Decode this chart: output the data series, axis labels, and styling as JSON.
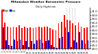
{
  "title": "Milwaukee Weather Barometric Pressure",
  "subtitle": "Daily High/Low",
  "high_color": "#ff0000",
  "low_color": "#0000cc",
  "background_color": "#ffffff",
  "ylim": [
    29.0,
    31.2
  ],
  "y_ticks": [
    29.0,
    29.2,
    29.4,
    29.6,
    29.8,
    30.0,
    30.2,
    30.4,
    30.6,
    30.8,
    31.0
  ],
  "y_tick_labels": [
    "29.0",
    "29.2",
    "29.4",
    "29.6",
    "29.8",
    "30.0",
    "30.2",
    "30.4",
    "30.6",
    "30.8",
    "31.0"
  ],
  "highs": [
    31.1,
    30.4,
    30.2,
    30.15,
    30.2,
    30.15,
    30.25,
    30.1,
    30.2,
    30.1,
    30.15,
    30.1,
    30.15,
    30.2,
    30.15,
    30.2,
    30.2,
    30.1,
    30.05,
    30.0,
    30.35,
    30.45,
    30.8,
    30.55,
    30.5,
    30.35,
    30.25,
    30.4,
    30.2,
    30.1,
    30.15
  ],
  "lows": [
    30.15,
    29.45,
    29.2,
    29.15,
    29.5,
    29.4,
    29.5,
    29.2,
    29.4,
    29.1,
    29.4,
    29.25,
    29.45,
    29.5,
    29.3,
    29.4,
    29.45,
    29.2,
    29.1,
    29.05,
    29.55,
    29.65,
    30.15,
    29.9,
    29.1,
    29.45,
    29.35,
    29.9,
    29.45,
    29.25,
    29.45
  ],
  "x_labels": [
    "1",
    "2",
    "3",
    "4",
    "5",
    "6",
    "7",
    "8",
    "9",
    "10",
    "11",
    "12",
    "13",
    "14",
    "15",
    "16",
    "17",
    "18",
    "19",
    "20",
    "21",
    "22",
    "23",
    "24",
    "25",
    "26",
    "27",
    "28",
    "29",
    "30",
    "31"
  ],
  "dotted_lines": [
    22.5,
    23.5,
    24.5,
    25.5
  ],
  "legend_labels": [
    "High",
    "Low"
  ]
}
